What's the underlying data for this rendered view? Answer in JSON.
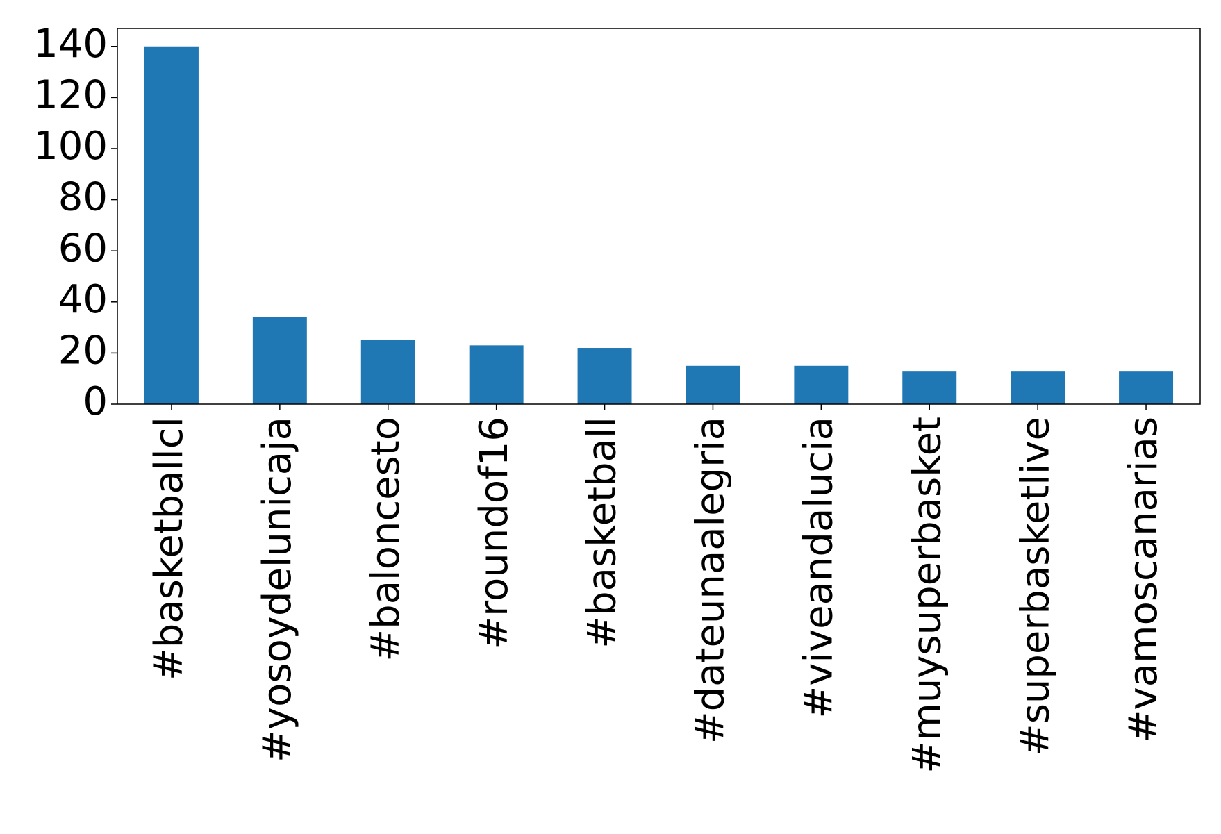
{
  "chart_data": {
    "type": "bar",
    "categories": [
      "#basketballcl",
      "#yosoydelunicaja",
      "#baloncesto",
      "#roundof16",
      "#basketball",
      "#dateunaalegria",
      "#viveandalucia",
      "#muysuperbasket",
      "#superbasketlive",
      "#vamoscanarias"
    ],
    "values": [
      140,
      34,
      25,
      23,
      22,
      15,
      15,
      13,
      13,
      13
    ],
    "color": "#1f77b4",
    "ylim": [
      0,
      147
    ],
    "yticks": [
      0,
      20,
      40,
      60,
      80,
      100,
      120,
      140
    ],
    "grid": false
  }
}
